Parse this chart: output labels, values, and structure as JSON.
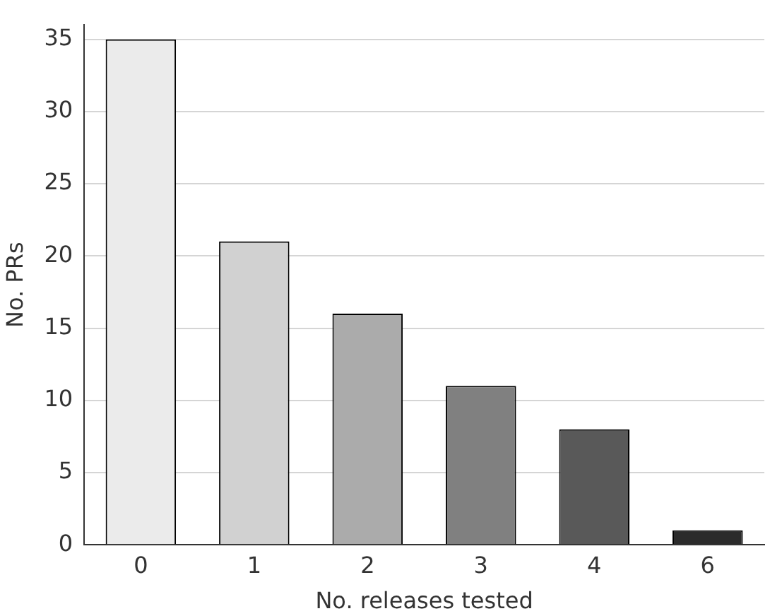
{
  "chart_data": {
    "type": "bar",
    "xlabel": "No. releases tested",
    "ylabel": "No. PRs",
    "categories": [
      "0",
      "1",
      "2",
      "3",
      "4",
      "6"
    ],
    "values": [
      35,
      21,
      16,
      11,
      8,
      1
    ],
    "colors": [
      "#ebebeb",
      "#d1d1d1",
      "#ababab",
      "#808080",
      "#595959",
      "#2b2b2b"
    ],
    "ylim": [
      0,
      36
    ],
    "yticks": [
      0,
      5,
      10,
      15,
      20,
      25,
      30,
      35
    ],
    "grid": "y",
    "legend": false
  }
}
